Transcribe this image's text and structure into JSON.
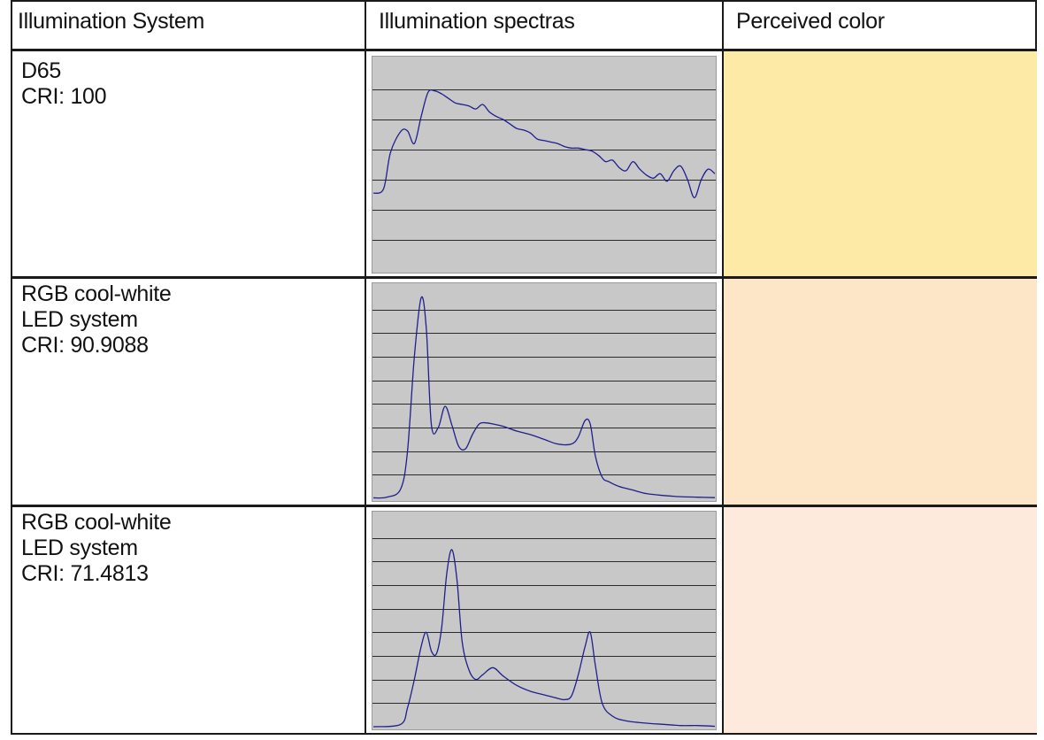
{
  "headers": {
    "system": "Illumination System",
    "spectra": "Illumination spectras",
    "color": "Perceived color"
  },
  "rows": [
    {
      "lines": [
        "D65",
        "CRI: 100"
      ],
      "perceived_color": "#fdeaa7",
      "chart_data": {
        "type": "line",
        "title": "",
        "xlabel": "",
        "ylabel": "",
        "ylim": [
          0,
          7
        ],
        "grid": true,
        "series": [
          {
            "color": "#1f1f8f",
            "x": [
              0,
              3,
              5,
              8,
              10,
              12,
              14,
              16,
              18,
              20,
              22,
              24,
              26,
              28,
              30,
              32,
              34,
              36,
              38,
              40,
              42,
              44,
              46,
              48,
              50,
              52,
              54,
              56,
              58,
              60,
              62,
              64,
              66,
              68,
              70,
              72,
              74,
              76,
              78,
              80,
              82,
              84,
              86,
              88,
              90,
              92,
              94,
              96,
              98,
              100
            ],
            "y": [
              2.55,
              2.7,
              3.9,
              4.6,
              4.62,
              4.2,
              5.1,
              5.9,
              5.95,
              5.85,
              5.7,
              5.55,
              5.5,
              5.45,
              5.35,
              5.5,
              5.25,
              5.1,
              5.0,
              4.85,
              4.7,
              4.65,
              4.55,
              4.35,
              4.3,
              4.25,
              4.2,
              4.1,
              4.05,
              4.05,
              4.0,
              3.95,
              3.8,
              3.6,
              3.65,
              3.4,
              3.3,
              3.6,
              3.35,
              3.15,
              3.05,
              3.2,
              2.95,
              3.3,
              3.45,
              3.0,
              2.4,
              3.0,
              3.35,
              3.2
            ]
          }
        ]
      }
    },
    {
      "lines": [
        "RGB cool-white",
        "LED system",
        "CRI: 90.9088"
      ],
      "perceived_color": "#fde6c8",
      "chart_data": {
        "type": "line",
        "title": "",
        "xlabel": "",
        "ylabel": "",
        "ylim": [
          0,
          9
        ],
        "grid": true,
        "series": [
          {
            "color": "#1f1f8f",
            "x": [
              0,
              4,
              8,
              10,
              12,
              14,
              15.5,
              17,
              19,
              21,
              23,
              25,
              27,
              29,
              31,
              33,
              35,
              38,
              42,
              46,
              50,
              54,
              58,
              60,
              62,
              63.5,
              65,
              67,
              69,
              72,
              76,
              80,
              85,
              90,
              95,
              100
            ],
            "y": [
              0.02,
              0.05,
              0.4,
              2.0,
              6.0,
              8.5,
              7.2,
              3.1,
              3.0,
              3.9,
              3.1,
              2.2,
              2.1,
              2.7,
              3.15,
              3.2,
              3.15,
              3.05,
              2.85,
              2.7,
              2.5,
              2.3,
              2.3,
              2.6,
              3.3,
              3.15,
              1.8,
              0.9,
              0.7,
              0.5,
              0.35,
              0.2,
              0.12,
              0.07,
              0.05,
              0.03
            ]
          }
        ]
      }
    },
    {
      "lines": [
        "RGB cool-white",
        "LED system",
        "CRI: 71.4813"
      ],
      "perceived_color": "#fdeadd",
      "chart_data": {
        "type": "line",
        "title": "",
        "xlabel": "",
        "ylabel": "",
        "ylim": [
          0,
          9
        ],
        "grid": true,
        "series": [
          {
            "color": "#1f1f8f",
            "x": [
              0,
              8,
              10,
              12,
              14,
              15.5,
              17,
              18.5,
              20,
              21.5,
              23,
              24.5,
              26,
              28,
              30,
              32,
              35,
              38,
              42,
              46,
              50,
              54,
              56,
              58,
              60,
              62,
              63.5,
              65,
              67,
              70,
              74,
              80,
              85,
              90,
              95,
              100
            ],
            "y": [
              0.0,
              0.1,
              0.8,
              2.0,
              3.4,
              4.0,
              3.2,
              3.1,
              4.2,
              6.5,
              7.5,
              6.2,
              3.6,
              2.4,
              2.0,
              2.2,
              2.5,
              2.15,
              1.75,
              1.5,
              1.35,
              1.2,
              1.15,
              1.3,
              2.2,
              3.4,
              4.0,
              2.6,
              1.0,
              0.45,
              0.25,
              0.15,
              0.1,
              0.05,
              0.05,
              0.02
            ]
          }
        ]
      }
    }
  ]
}
